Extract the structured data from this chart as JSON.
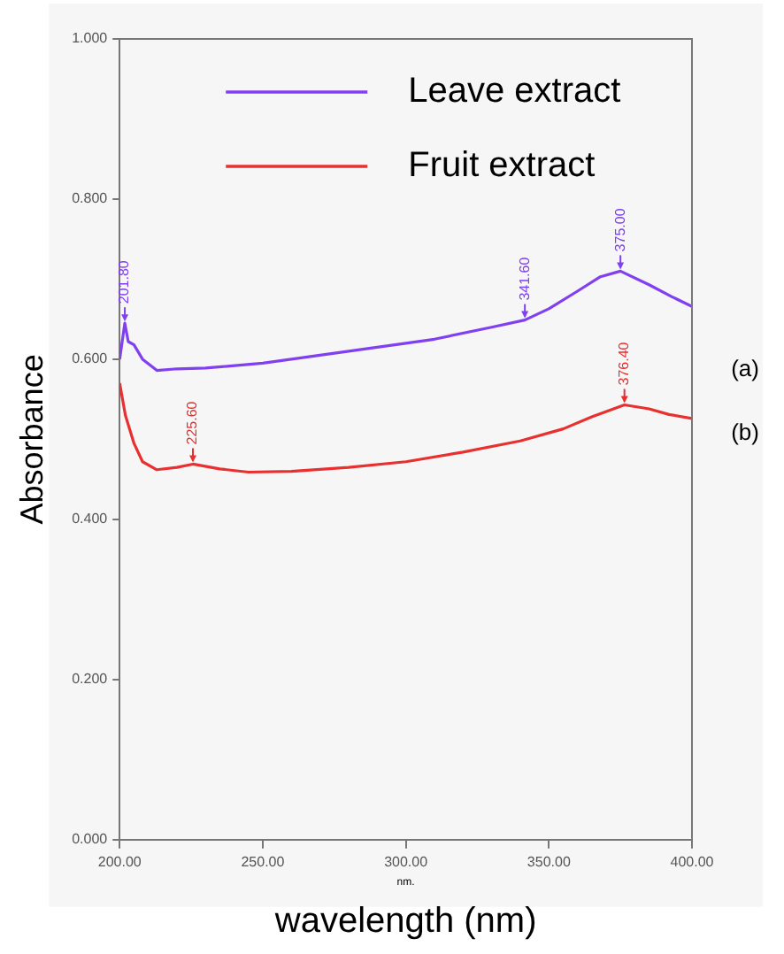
{
  "chart_data": {
    "type": "line",
    "xlabel": "wavelength (nm)",
    "ylabel": "Absorbance",
    "xlim": [
      200,
      400
    ],
    "xticks": [
      {
        "value": 200,
        "label": "200.00"
      },
      {
        "value": 250,
        "label": "250.00"
      },
      {
        "value": 300,
        "label": "300.00"
      },
      {
        "value": 350,
        "label": "350.00"
      },
      {
        "value": 400,
        "label": "400.00"
      }
    ],
    "ylim": [
      0,
      1
    ],
    "yticks": [
      {
        "value": 0,
        "label": "0.000"
      },
      {
        "value": 0.2,
        "label": "0.200"
      },
      {
        "value": 0.4,
        "label": "0.400"
      },
      {
        "value": 0.6,
        "label": "0.600"
      },
      {
        "value": 0.8,
        "label": "0.800"
      },
      {
        "value": 1,
        "label": "1.000"
      }
    ],
    "grid": false,
    "legend": "top",
    "marker": "none",
    "line_style": "solid",
    "series": [
      {
        "name": "Leave extract",
        "color": "#8040f0",
        "x": [
          200,
          201,
          201.8,
          203,
          205,
          208,
          213,
          220,
          230,
          250,
          270,
          290,
          310,
          330,
          341.6,
          350,
          360,
          368,
          375,
          385,
          393,
          400
        ],
        "values": [
          0.6,
          0.625,
          0.645,
          0.622,
          0.618,
          0.6,
          0.586,
          0.588,
          0.589,
          0.595,
          0.605,
          0.615,
          0.625,
          0.64,
          0.649,
          0.663,
          0.685,
          0.703,
          0.71,
          0.693,
          0.678,
          0.666
        ]
      },
      {
        "name": "Fruit extract",
        "color": "#e83030",
        "x": [
          200,
          202,
          205,
          208,
          213,
          220,
          225.6,
          235,
          245,
          260,
          280,
          300,
          320,
          340,
          355,
          365,
          376.4,
          385,
          392,
          400
        ],
        "values": [
          0.57,
          0.53,
          0.495,
          0.472,
          0.462,
          0.465,
          0.469,
          0.463,
          0.459,
          0.46,
          0.465,
          0.472,
          0.484,
          0.498,
          0.513,
          0.528,
          0.543,
          0.538,
          0.531,
          0.526
        ]
      }
    ],
    "annotations": [
      {
        "text": "201.80",
        "x": 201.8,
        "y": 0.645
      },
      {
        "text": "341.60",
        "x": 341.6,
        "y": 0.649
      },
      {
        "text": "375.00",
        "x": 375,
        "y": 0.71
      },
      {
        "text": "225.60",
        "x": 225.6,
        "y": 0.469
      },
      {
        "text": "376.40",
        "x": 376.4,
        "y": 0.543
      },
      "(a)",
      "(b)",
      "nm."
    ]
  }
}
